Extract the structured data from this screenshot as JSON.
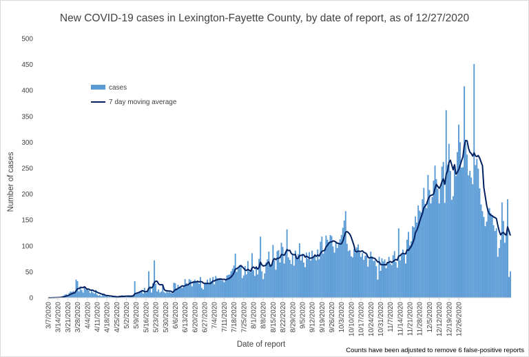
{
  "chart_data": {
    "type": "bar",
    "title": "New COVID-19 cases in Lexington-Fayette County, by date of report, as of 12/27/2020",
    "xlabel": "Date of report",
    "ylabel": "Number of cases",
    "note": "Counts have been adjusted to remove 6 false-positive reports",
    "ylim": [
      0,
      500
    ],
    "yticks": [
      0,
      50,
      100,
      150,
      200,
      250,
      300,
      350,
      400,
      450,
      500
    ],
    "grid": false,
    "legend_position": "upper-left",
    "x_start": "3/7/2020",
    "x_end": "12/27/2020",
    "xtick_labels": [
      "3/7/2020",
      "3/14/2020",
      "3/21/2020",
      "3/28/2020",
      "4/4/2020",
      "4/11/2020",
      "4/18/2020",
      "4/25/2020",
      "5/2/2020",
      "5/9/2020",
      "5/16/2020",
      "5/23/2020",
      "5/30/2020",
      "6/6/2020",
      "6/13/2020",
      "6/20/2020",
      "6/27/2020",
      "7/4/2020",
      "7/11/2020",
      "7/18/2020",
      "7/25/2020",
      "8/1/2020",
      "8/8/2020",
      "8/15/2020",
      "8/22/2020",
      "8/29/2020",
      "9/5/2020",
      "9/12/2020",
      "9/19/2020",
      "9/26/2020",
      "10/3/2020",
      "10/10/2020",
      "10/17/2020",
      "10/24/2020",
      "10/31/2020",
      "11/7/2020",
      "11/14/2020",
      "11/21/2020",
      "11/28/2020",
      "12/5/2020",
      "12/12/2020",
      "12/19/2020",
      "12/26/2020"
    ],
    "series": [
      {
        "name": "cases",
        "kind": "bar",
        "color": "#5b9bd5",
        "values": [
          0,
          0,
          0,
          1,
          0,
          1,
          0,
          1,
          1,
          2,
          3,
          4,
          6,
          7,
          5,
          9,
          12,
          11,
          13,
          10,
          35,
          32,
          12,
          22,
          15,
          10,
          22,
          16,
          18,
          14,
          9,
          13,
          10,
          8,
          15,
          6,
          4,
          5,
          3,
          6,
          5,
          3,
          4,
          2,
          2,
          1,
          3,
          2,
          2,
          1,
          2,
          4,
          3,
          5,
          2,
          4,
          1,
          3,
          4,
          2,
          5,
          6,
          32,
          8,
          9,
          10,
          12,
          15,
          8,
          19,
          10,
          13,
          51,
          22,
          10,
          28,
          72,
          27,
          12,
          16,
          10,
          12,
          25,
          11,
          9,
          13,
          10,
          11,
          9,
          8,
          29,
          28,
          18,
          25,
          20,
          22,
          19,
          23,
          36,
          28,
          25,
          36,
          34,
          22,
          32,
          35,
          30,
          33,
          27,
          40,
          19,
          16,
          28,
          29,
          35,
          26,
          38,
          32,
          40,
          26,
          42,
          38,
          35,
          38,
          34,
          33,
          30,
          35,
          43,
          44,
          45,
          51,
          56,
          62,
          85,
          50,
          56,
          63,
          63,
          38,
          43,
          61,
          45,
          71,
          50,
          49,
          86,
          53,
          42,
          61,
          45,
          75,
          118,
          51,
          36,
          47,
          68,
          74,
          89,
          60,
          64,
          102,
          72,
          54,
          90,
          92,
          68,
          106,
          98,
          66,
          88,
          132,
          78,
          73,
          65,
          83,
          62,
          91,
          76,
          84,
          105,
          72,
          85,
          68,
          59,
          87,
          75,
          88,
          72,
          91,
          78,
          84,
          72,
          93,
          74,
          108,
          118,
          85,
          91,
          120,
          112,
          106,
          121,
          119,
          99,
          87,
          108,
          96,
          104,
          113,
          121,
          135,
          149,
          167,
          104,
          90,
          92,
          80,
          78,
          94,
          87,
          97,
          103,
          88,
          79,
          86,
          73,
          81,
          82,
          60,
          74,
          89,
          80,
          71,
          72,
          61,
          35,
          79,
          52,
          76,
          70,
          74,
          57,
          68,
          79,
          66,
          63,
          82,
          90,
          69,
          58,
          134,
          72,
          84,
          93,
          85,
          66,
          112,
          127,
          101,
          109,
          138,
          136,
          157,
          145,
          178,
          168,
          165,
          190,
          212,
          181,
          173,
          237,
          208,
          182,
          194,
          226,
          255,
          229,
          210,
          182,
          213,
          253,
          262,
          183,
          362,
          256,
          297,
          245,
          189,
          196,
          251,
          235,
          281,
          334,
          300,
          251,
          252,
          408,
          298,
          276,
          236,
          245,
          232,
          219,
          451,
          256,
          268,
          249,
          211,
          180,
          167,
          156,
          138,
          147,
          171,
          173,
          163,
          159,
          140,
          129,
          134,
          79,
          96,
          112,
          184,
          148,
          106,
          121,
          190,
          40,
          51
        ],
        "_note": "values by day, 3/7/2020 through 12/27/2020"
      },
      {
        "name": "7 day moving average",
        "kind": "line",
        "color": "#002060"
      }
    ]
  }
}
